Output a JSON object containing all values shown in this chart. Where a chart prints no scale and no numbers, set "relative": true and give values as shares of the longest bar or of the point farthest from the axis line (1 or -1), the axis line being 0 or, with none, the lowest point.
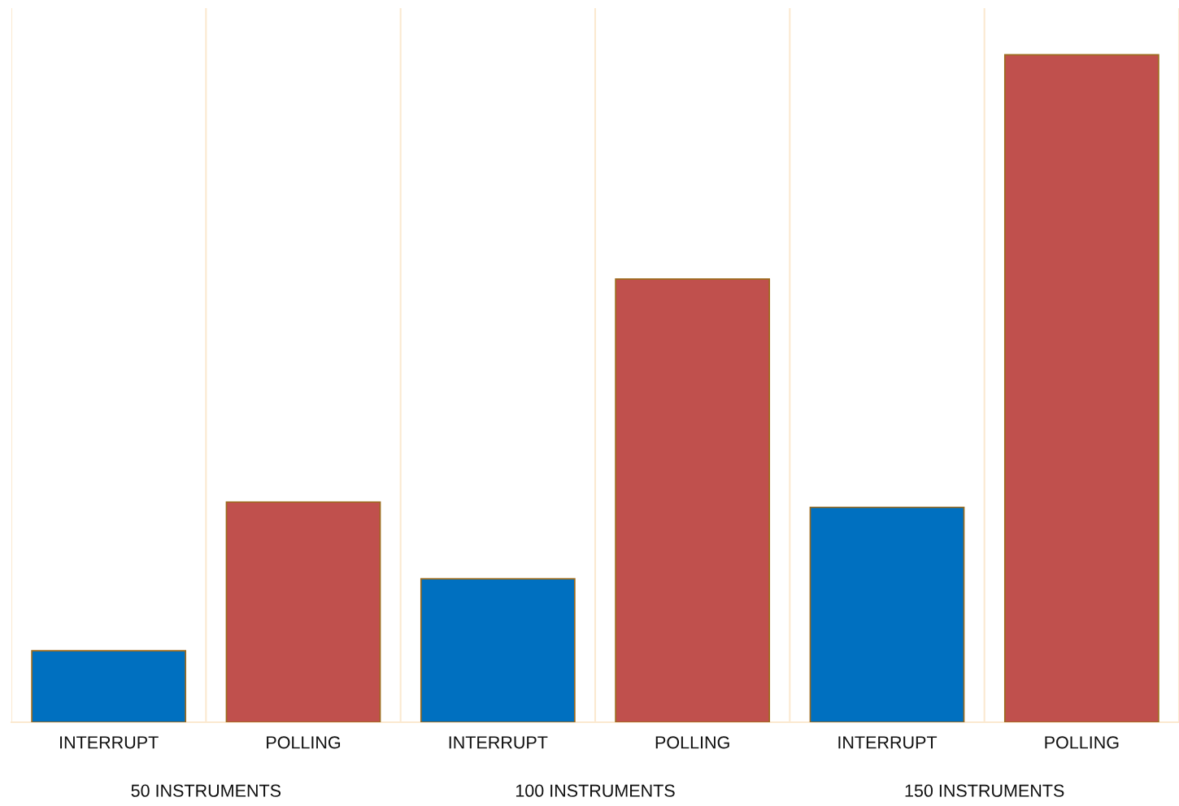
{
  "chart_data": {
    "type": "bar",
    "relative": true,
    "categories": [
      "INTERRUPT",
      "POLLING",
      "INTERRUPT",
      "POLLING",
      "INTERRUPT",
      "POLLING"
    ],
    "values": [
      0.107,
      0.33,
      0.215,
      0.664,
      0.322,
      1.0
    ],
    "colors": [
      "#0070c0",
      "#c0504d",
      "#0070c0",
      "#c0504d",
      "#0070c0",
      "#c0504d"
    ],
    "annotations": [
      "50 INSTRUMENTS",
      "100 INSTRUMENTS",
      "150 INSTRUMENTS"
    ],
    "grid": "x"
  }
}
